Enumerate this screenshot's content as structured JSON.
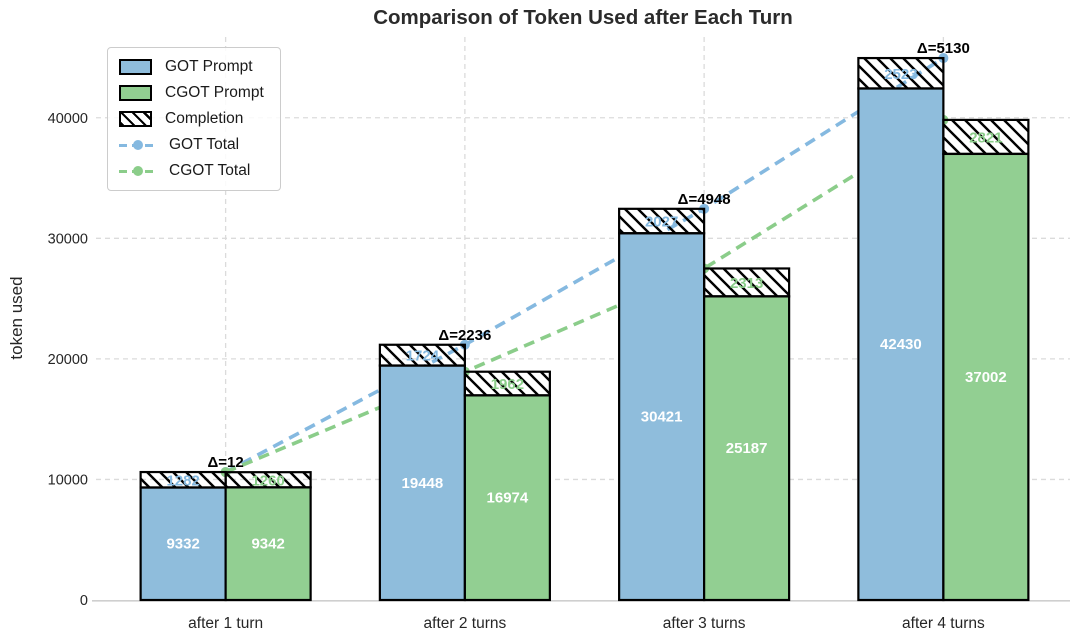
{
  "chart_data": {
    "type": "bar",
    "title": "Comparison of Token Used after Each Turn",
    "xlabel": "",
    "ylabel": "token used",
    "categories": [
      "after 1 turn",
      "after 2 turns",
      "after 3 turns",
      "after 4 turns"
    ],
    "yticks": [
      0,
      10000,
      20000,
      30000,
      40000
    ],
    "ylim": [
      0,
      46700
    ],
    "grid": {
      "horizontal": true,
      "vertical": true,
      "style": "dashed"
    },
    "colors": {
      "got_fill": "#8FBDDC",
      "cgot_fill": "#92CF92",
      "got_line": "#85B9E0",
      "cgot_line": "#8BCD8A",
      "bar_edge": "#000000",
      "gridline": "#DBDBDB",
      "axis_line": "#CFCFCF",
      "bar_label": "#FFFFFF",
      "delta_label": "#000000"
    },
    "legend": {
      "position": "upper-left",
      "entries": [
        {
          "label": "GOT Prompt",
          "swatch": "rect",
          "color": "#8FBDDC"
        },
        {
          "label": "CGOT Prompt",
          "swatch": "rect",
          "color": "#92CF92"
        },
        {
          "label": "Completion",
          "swatch": "hatch",
          "color": "#000000"
        },
        {
          "label": "GOT Total",
          "swatch": "line",
          "color": "#85B9E0"
        },
        {
          "label": "CGOT Total",
          "swatch": "line",
          "color": "#8BCD8A"
        }
      ]
    },
    "series": [
      {
        "name": "GOT Prompt",
        "type": "bar",
        "values": [
          9332,
          19448,
          30421,
          42430
        ]
      },
      {
        "name": "CGOT Prompt",
        "type": "bar",
        "values": [
          9342,
          16974,
          25187,
          37002
        ]
      },
      {
        "name": "GOT Completion",
        "type": "bar-hatch",
        "values": [
          1282,
          1724,
          2027,
          2523
        ]
      },
      {
        "name": "CGOT Completion",
        "type": "bar-hatch",
        "values": [
          1260,
          1962,
          2313,
          2821
        ]
      },
      {
        "name": "GOT Total",
        "type": "dashed-line",
        "values": [
          10614,
          21172,
          32448,
          44953
        ]
      },
      {
        "name": "CGOT Total",
        "type": "dashed-line",
        "values": [
          10602,
          18936,
          27500,
          39823
        ]
      }
    ],
    "annotations": [
      {
        "text": "Δ=12",
        "group": 0
      },
      {
        "text": "Δ=2236",
        "group": 1
      },
      {
        "text": "Δ=4948",
        "group": 2
      },
      {
        "text": "Δ=5130",
        "group": 3
      }
    ]
  }
}
